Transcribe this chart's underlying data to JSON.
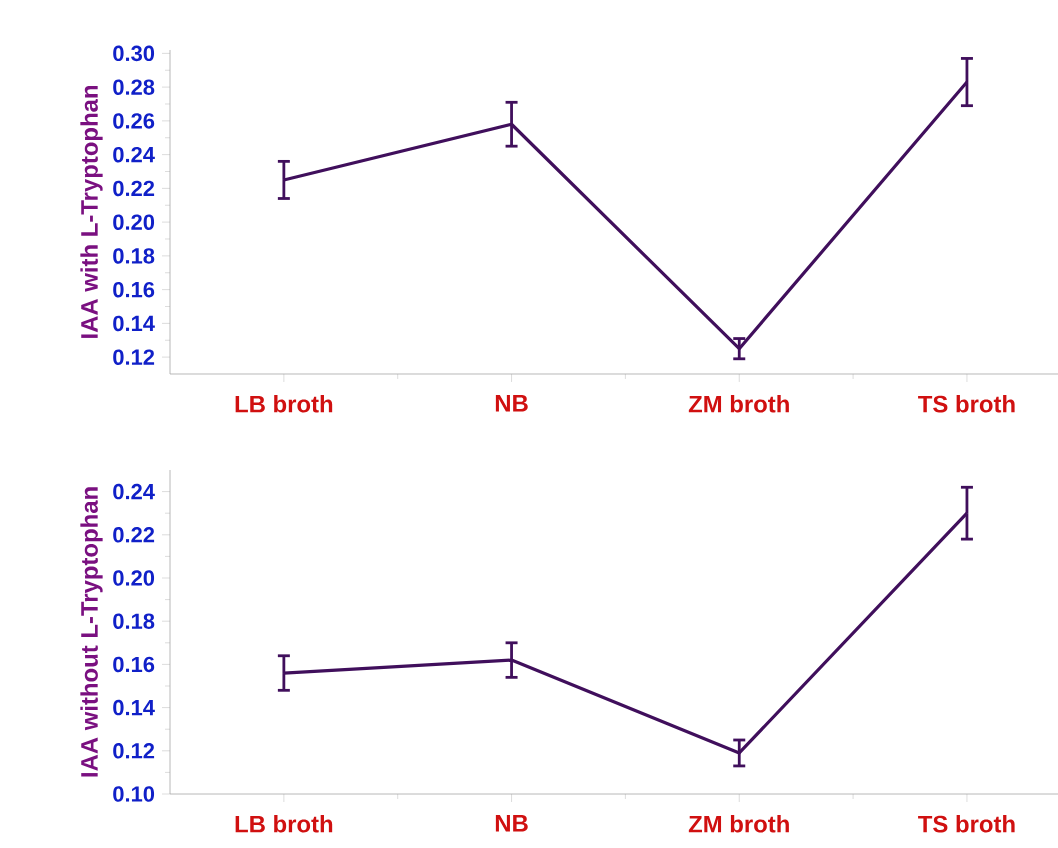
{
  "chart_data": [
    {
      "type": "line",
      "ylabel": "IAA with L-Tryptophan",
      "categories": [
        "LB broth",
        "NB",
        "ZM broth",
        "TS broth"
      ],
      "series": [
        {
          "color": "#400f5c",
          "values": [
            0.225,
            0.258,
            0.125,
            0.283
          ],
          "errors": [
            0.011,
            0.013,
            0.006,
            0.014
          ]
        }
      ],
      "ylim": [
        0.11,
        0.302
      ],
      "yticks": [
        {
          "value": 0.12,
          "label": "0.12"
        },
        {
          "value": 0.14,
          "label": "0.14"
        },
        {
          "value": 0.16,
          "label": "0.16"
        },
        {
          "value": 0.18,
          "label": "0.18"
        },
        {
          "value": 0.2,
          "label": "0.20"
        },
        {
          "value": 0.22,
          "label": "0.22"
        },
        {
          "value": 0.24,
          "label": "0.24"
        },
        {
          "value": 0.26,
          "label": "0.26"
        },
        {
          "value": 0.28,
          "label": "0.28"
        },
        {
          "value": 0.3,
          "label": "0.30"
        }
      ],
      "marker": "none",
      "line_style": "solid",
      "grid": false
    },
    {
      "type": "line",
      "ylabel": "IAA without L-Tryptophan",
      "categories": [
        "LB broth",
        "NB",
        "ZM broth",
        "TS broth"
      ],
      "series": [
        {
          "color": "#400f5c",
          "values": [
            0.156,
            0.162,
            0.119,
            0.23
          ],
          "errors": [
            0.008,
            0.008,
            0.006,
            0.012
          ]
        }
      ],
      "ylim": [
        0.1,
        0.25
      ],
      "yticks": [
        {
          "value": 0.1,
          "label": "0.10"
        },
        {
          "value": 0.12,
          "label": "0.12"
        },
        {
          "value": 0.14,
          "label": "0.14"
        },
        {
          "value": 0.16,
          "label": "0.16"
        },
        {
          "value": 0.18,
          "label": "0.18"
        },
        {
          "value": 0.2,
          "label": "0.20"
        },
        {
          "value": 0.22,
          "label": "0.22"
        },
        {
          "value": 0.24,
          "label": "0.24"
        }
      ],
      "marker": "none",
      "line_style": "solid",
      "grid": false
    }
  ]
}
